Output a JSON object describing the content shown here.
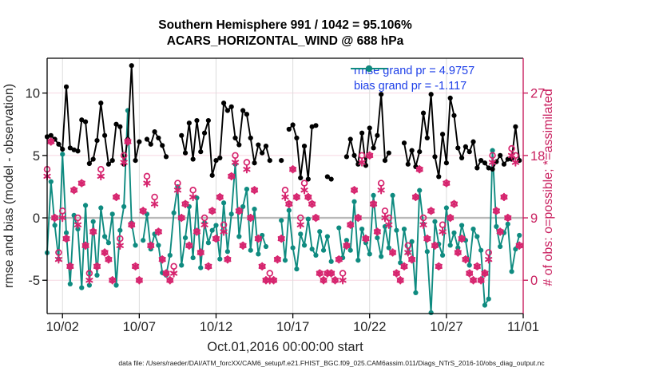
{
  "figure": {
    "footer": "data file: /Users/raeder/DAI/ATM_forcXX/CAM6_setup/f.e21.FHIST_BGC.f09_025.CAM6assim.011/Diags_NTrS_2016-10/obs_diag_output.nc"
  },
  "chart_data": {
    "type": "line",
    "title": "Southern Hemisphere 991 / 1042 = 95.106%",
    "subtitle": "ACARS_HORIZONTAL_WIND @ 688 hPa",
    "xlabel": "Oct.01,2016 00:00:00 start",
    "ylabel_left": "rmse and bias (model - observation)",
    "ylabel_right": "# of obs: o=possible; *=assimilated",
    "time_step_days": 0.25,
    "xlim_days": [
      0,
      31
    ],
    "ylim_left": [
      -7.67,
      12.79
    ],
    "x_ticks": [
      {
        "day": 1,
        "label": "10/02"
      },
      {
        "day": 6,
        "label": "10/07"
      },
      {
        "day": 11,
        "label": "10/12"
      },
      {
        "day": 16,
        "label": "10/17"
      },
      {
        "day": 21,
        "label": "10/22"
      },
      {
        "day": 26,
        "label": "10/27"
      },
      {
        "day": 31,
        "label": "11/01"
      }
    ],
    "y_ticks_left": [
      -5,
      0,
      5,
      10
    ],
    "y_ticks_right": [
      0,
      9,
      18,
      27
    ],
    "right_axis_alignment": "right_count = (left_value + 5) * 1.8",
    "grid": true,
    "legend_position": "top-right-inside",
    "colors": {
      "rmse": "#000000",
      "bias": "#0f8b80",
      "obs": "#d6246e",
      "axis_right": "#c9205f",
      "grid_vertical": "#dcdcdc",
      "grid_horizontal": "#f6d7e2",
      "zero_line": "#b9b9b9",
      "legend_text": "#1c3ee8",
      "tick_text": "#262626"
    },
    "legend": [
      {
        "label": "rmse grand pr = 4.9757",
        "series": "rmse"
      },
      {
        "label": "bias grand pr = -1.117",
        "series": "bias"
      }
    ],
    "series": [
      {
        "name": "rmse",
        "axis": "left",
        "marker": "dot",
        "grand_pr": 4.9757,
        "values": [
          6.5,
          6.6,
          6.3,
          5.9,
          5.5,
          10.5,
          5.6,
          5.45,
          5.35,
          7.85,
          7.7,
          4.35,
          4.7,
          6.2,
          9.2,
          6.6,
          4.3,
          4.6,
          7.5,
          7.3,
          4.3,
          6.3,
          12.2,
          4.6,
          6.1,
          null,
          6.3,
          5.9,
          6.9,
          6.4,
          5.8,
          4.9,
          null,
          null,
          null,
          6.6,
          5.2,
          7.6,
          4.7,
          7.8,
          5.3,
          6.8,
          7.8,
          3.4,
          4.6,
          4.8,
          9.2,
          8.6,
          8.9,
          6.4,
          5.85,
          8.6,
          8.3,
          6.4,
          4.4,
          5.85,
          5.2,
          5.75,
          4.6,
          null,
          null,
          4.6,
          null,
          7.1,
          7.45,
          6.4,
          3.2,
          5.75,
          3.1,
          7.3,
          7.4,
          null,
          null,
          3.3,
          3.1,
          null,
          null,
          null,
          4.9,
          6.3,
          5.0,
          4.3,
          6.8,
          4.2,
          7.2,
          5.6,
          6.6,
          9.9,
          4.6,
          5.2,
          null,
          null,
          null,
          6.0,
          4.3,
          5.4,
          4.1,
          5.3,
          8.4,
          6.4,
          9.9,
          4.9,
          3.3,
          6.7,
          4.4,
          9.6,
          8.2,
          5.6,
          4.8,
          5.7,
          5.3,
          6.1,
          4.0,
          4.6,
          4.4,
          4.0,
          3.9,
          4.5,
          5.0,
          4.3,
          4.7,
          4.7,
          7.3,
          4.6
        ]
      },
      {
        "name": "bias",
        "axis": "left",
        "marker": "dot",
        "grand_pr": -1.117,
        "values": [
          -2.8,
          2.9,
          -0.6,
          -3.3,
          5.1,
          -1.2,
          -5.3,
          0.2,
          -0.9,
          -5.6,
          1.0,
          -5.4,
          -0.3,
          -4.6,
          0.8,
          -1.5,
          -2.0,
          0.3,
          -5.4,
          -1.0,
          0.9,
          8.6,
          -0.4,
          -2.2,
          null,
          -1.8,
          0.3,
          -2.5,
          -1.3,
          -2.2,
          -4.4,
          -4.6,
          -3.0,
          0.4,
          2.5,
          -3.8,
          -1.6,
          0.9,
          -3.2,
          1.6,
          -4.0,
          -0.4,
          -2.0,
          -1.0,
          -0.6,
          -3.3,
          1.2,
          -2.7,
          0.3,
          4.3,
          -1.5,
          0.9,
          2.3,
          -2.6,
          0.7,
          -2.9,
          -1.4,
          -2.3,
          null,
          null,
          null,
          -0.2,
          -3.4,
          0.6,
          -2.4,
          -4.1,
          -1.3,
          -2.2,
          -0.1,
          -2.5,
          -3.0,
          -1.1,
          -2.6,
          -1.5,
          -3.5,
          null,
          -0.8,
          -3.2,
          -1.8,
          -2.6,
          1.3,
          -3.4,
          -0.9,
          -2.0,
          -2.9,
          1.8,
          -1.6,
          -3.1,
          -0.7,
          -2.4,
          1.8,
          -1.0,
          -3.6,
          -0.9,
          -2.8,
          -1.9,
          -6.0,
          2.2,
          -0.5,
          -2.7,
          -7.6,
          -0.3,
          -2.1,
          -3.0,
          0.8,
          -2.2,
          -1.2,
          -2.4,
          -0.6,
          -1.8,
          -3.8,
          -0.9,
          -1.5,
          -2.6,
          -7.0,
          -6.5,
          5.4,
          -0.7,
          -2.3,
          -1.2,
          -0.5,
          -4.3,
          -2.5,
          -1.4
        ]
      },
      {
        "name": "possible",
        "axis": "right",
        "marker": "o",
        "values": [
          16,
          20,
          9,
          4,
          10,
          6,
          2,
          13,
          9,
          14,
          5,
          1,
          7,
          2,
          16,
          4,
          3,
          0,
          12,
          6,
          18,
          20,
          8,
          2,
          0,
          10,
          15,
          5,
          12,
          7,
          3,
          1,
          0,
          2,
          14,
          9,
          11,
          5,
          13,
          7,
          4,
          9,
          2,
          10,
          6,
          12,
          8,
          3,
          15,
          18,
          10,
          5,
          17,
          9,
          13,
          6,
          2,
          0,
          1,
          0,
          3,
          6,
          13,
          11,
          16,
          12,
          9,
          14,
          12,
          11,
          9,
          1,
          0,
          1,
          1,
          0,
          3,
          1,
          5,
          8,
          13,
          9,
          18,
          6,
          18,
          11,
          7,
          14,
          10,
          9,
          4,
          1,
          0,
          2,
          5,
          3,
          12,
          16,
          9,
          6,
          10,
          5,
          2,
          8,
          14,
          9,
          11,
          4,
          6,
          3,
          1,
          0,
          2,
          0,
          1,
          4,
          18,
          10,
          7,
          12,
          9,
          19,
          18,
          5
        ]
      },
      {
        "name": "assimilated",
        "axis": "right",
        "marker": "*",
        "values": [
          15,
          20,
          9,
          3,
          9,
          6,
          2,
          13,
          8,
          14,
          5,
          0,
          7,
          2,
          15,
          4,
          3,
          0,
          12,
          5,
          17,
          20,
          8,
          2,
          0,
          10,
          14,
          5,
          11,
          7,
          3,
          1,
          0,
          1,
          13,
          9,
          11,
          5,
          12,
          7,
          4,
          8,
          2,
          10,
          6,
          12,
          7,
          3,
          15,
          17,
          10,
          5,
          16,
          9,
          13,
          6,
          2,
          0,
          0,
          0,
          3,
          6,
          12,
          11,
          16,
          12,
          8,
          13,
          12,
          11,
          9,
          1,
          0,
          1,
          1,
          0,
          3,
          0,
          5,
          8,
          13,
          9,
          17,
          6,
          18,
          11,
          7,
          13,
          9,
          8,
          4,
          1,
          0,
          2,
          4,
          3,
          12,
          16,
          8,
          6,
          10,
          5,
          2,
          7,
          14,
          9,
          11,
          4,
          6,
          3,
          1,
          0,
          2,
          0,
          1,
          3,
          17,
          10,
          7,
          12,
          9,
          18,
          17,
          5
        ]
      }
    ]
  }
}
